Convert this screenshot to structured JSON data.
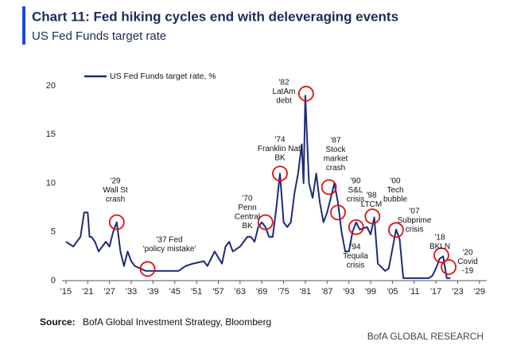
{
  "chart_data": {
    "type": "line",
    "title": "Chart 11: Fed hiking cycles end with deleveraging events",
    "subtitle": "US Fed Funds target rate",
    "source_label": "Source:",
    "source": "BofA Global Investment Strategy, Bloomberg",
    "brand": "BofA GLOBAL RESEARCH",
    "xlim": [
      1914,
      2030
    ],
    "ylim": [
      0,
      20
    ],
    "yticks": [
      0,
      5,
      10,
      15,
      20
    ],
    "xticks": [
      {
        "value": 1915,
        "label": "'15"
      },
      {
        "value": 1921,
        "label": "'21"
      },
      {
        "value": 1927,
        "label": "'27"
      },
      {
        "value": 1933,
        "label": "'33"
      },
      {
        "value": 1939,
        "label": "'39"
      },
      {
        "value": 1945,
        "label": "'45"
      },
      {
        "value": 1951,
        "label": "'51"
      },
      {
        "value": 1957,
        "label": "'57"
      },
      {
        "value": 1963,
        "label": "'63"
      },
      {
        "value": 1969,
        "label": "'69"
      },
      {
        "value": 1975,
        "label": "'75"
      },
      {
        "value": 1981,
        "label": "'81"
      },
      {
        "value": 1987,
        "label": "'87"
      },
      {
        "value": 1993,
        "label": "'93"
      },
      {
        "value": 1999,
        "label": "'99"
      },
      {
        "value": 2005,
        "label": "'05"
      },
      {
        "value": 2011,
        "label": "'11"
      },
      {
        "value": 2017,
        "label": "'17"
      },
      {
        "value": 2023,
        "label": "'23"
      },
      {
        "value": 2029,
        "label": "'29"
      }
    ],
    "grid": false,
    "legend": "top-left",
    "x": [
      1915,
      1917,
      1919,
      1920,
      1921,
      1921.5,
      1922,
      1923,
      1924,
      1925,
      1926,
      1927,
      1928,
      1929,
      1930,
      1931,
      1932,
      1933,
      1934,
      1937,
      1942,
      1946,
      1948,
      1950,
      1953,
      1954,
      1956,
      1958,
      1959,
      1960,
      1961,
      1963,
      1965,
      1966,
      1967,
      1968,
      1969,
      1970,
      1971,
      1972,
      1973,
      1974,
      1975,
      1976,
      1977,
      1978,
      1979,
      1980,
      1980.5,
      1981,
      1982,
      1983,
      1984,
      1985,
      1986,
      1987,
      1988,
      1989,
      1990,
      1991,
      1992,
      1993,
      1994,
      1995,
      1996,
      1998,
      1999,
      2000,
      2001,
      2003,
      2004,
      2006,
      2007,
      2008,
      2015,
      2016,
      2017,
      2018,
      2019,
      2020,
      2021
    ],
    "series": [
      {
        "name": "US Fed Funds target rate, %",
        "color": "#1f2a78",
        "values": [
          4,
          3.5,
          4.5,
          7,
          7,
          4.5,
          4.5,
          4,
          3,
          3.5,
          4,
          3.5,
          5,
          6,
          3,
          1.5,
          3,
          2,
          1.5,
          1,
          1,
          1,
          1.5,
          1.75,
          2,
          1.5,
          3,
          1.75,
          3.5,
          4,
          3,
          3.5,
          4.5,
          4.5,
          4,
          5.5,
          6,
          5.5,
          4.5,
          4.5,
          7.5,
          11,
          6,
          5.5,
          6,
          9,
          11,
          14,
          10,
          19,
          10,
          8.5,
          11,
          8,
          6,
          7,
          8.5,
          10,
          8,
          5,
          3,
          3,
          5,
          6,
          5.25,
          5.5,
          4.75,
          6.5,
          1.75,
          1,
          1.25,
          5.25,
          4.25,
          0.25,
          0.25,
          0.5,
          1.25,
          2.25,
          2.5,
          0.25,
          0.25
        ]
      }
    ],
    "annotations": [
      [
        "'29",
        "Wall St",
        "crash"
      ],
      [
        "'37 Fed",
        "'policy mistake'"
      ],
      [
        "'70",
        "Penn",
        "Central",
        "BK"
      ],
      [
        "'74",
        "Franklin Natl",
        "BK"
      ],
      [
        "'82",
        "LatAm",
        "debt"
      ],
      [
        "'87",
        "Stock",
        "market",
        "crash"
      ],
      [
        "'90",
        "S&L",
        "crisis"
      ],
      [
        "'94",
        "Tequila",
        "crisis"
      ],
      [
        "'98",
        "LTCM"
      ],
      [
        "'00",
        "Tech",
        "bubble"
      ],
      [
        "'07",
        "Subprime",
        "crisis"
      ],
      [
        "'18",
        "BKLN"
      ],
      [
        "'20",
        "Covid",
        "-19"
      ]
    ]
  }
}
